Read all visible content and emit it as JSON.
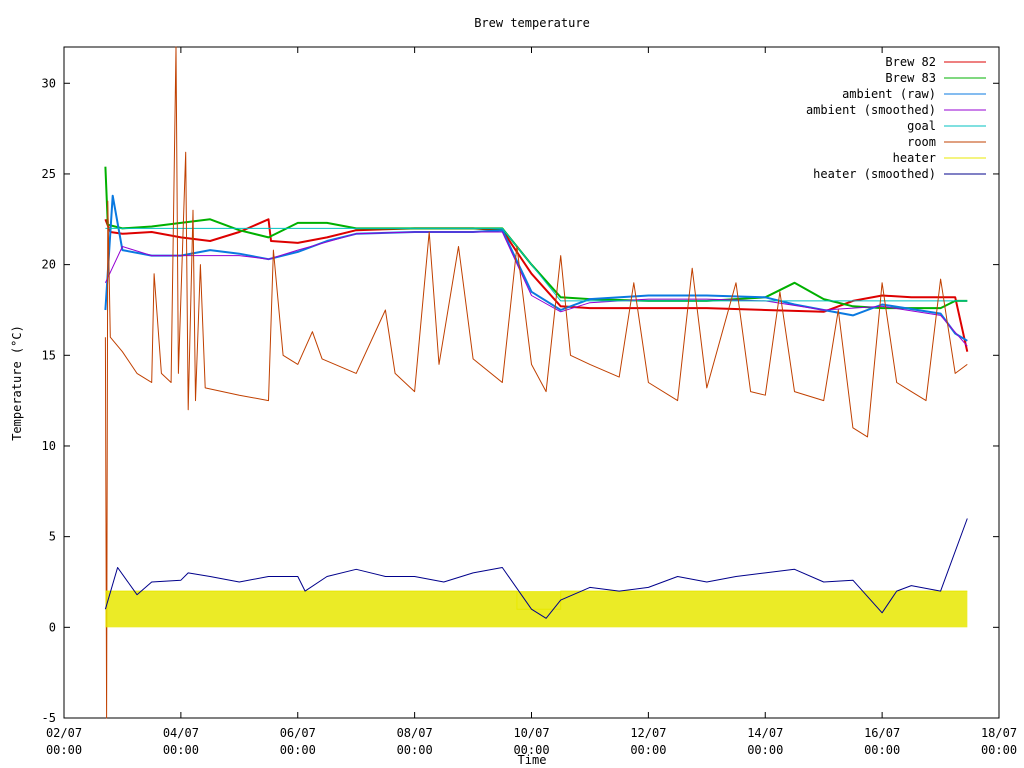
{
  "chart_data": {
    "type": "line",
    "title": "Brew temperature",
    "xlabel": "Time",
    "ylabel": "Temperature (°C)",
    "xlim": [
      "2013-07-02 00:00",
      "2013-07-18 00:00"
    ],
    "ylim": [
      -5,
      32
    ],
    "grid": false,
    "legend_position": "top-right",
    "y_ticks": [
      -5,
      0,
      5,
      10,
      15,
      20,
      25,
      30
    ],
    "x_ticks": [
      {
        "x": "2013-07-02 00:00",
        "date": "02/07",
        "time": "00:00"
      },
      {
        "x": "2013-07-04 00:00",
        "date": "04/07",
        "time": "00:00"
      },
      {
        "x": "2013-07-06 00:00",
        "date": "06/07",
        "time": "00:00"
      },
      {
        "x": "2013-07-08 00:00",
        "date": "08/07",
        "time": "00:00"
      },
      {
        "x": "2013-07-10 00:00",
        "date": "10/07",
        "time": "00:00"
      },
      {
        "x": "2013-07-12 00:00",
        "date": "12/07",
        "time": "00:00"
      },
      {
        "x": "2013-07-14 00:00",
        "date": "14/07",
        "time": "00:00"
      },
      {
        "x": "2013-07-16 00:00",
        "date": "16/07",
        "time": "00:00"
      },
      {
        "x": "2013-07-18 00:00",
        "date": "18/07",
        "time": "00:00"
      }
    ],
    "series": [
      {
        "name": "Brew 82",
        "color": "#dd0000",
        "width": 2,
        "points": [
          [
            "2013-07-02 17:00",
            22.5
          ],
          [
            "2013-07-02 19:00",
            21.8
          ],
          [
            "2013-07-03 00:00",
            21.7
          ],
          [
            "2013-07-03 12:00",
            21.8
          ],
          [
            "2013-07-04 00:00",
            21.5
          ],
          [
            "2013-07-04 12:00",
            21.3
          ],
          [
            "2013-07-05 00:00",
            21.8
          ],
          [
            "2013-07-05 12:00",
            22.5
          ],
          [
            "2013-07-05 13:00",
            21.3
          ],
          [
            "2013-07-06 00:00",
            21.2
          ],
          [
            "2013-07-06 12:00",
            21.5
          ],
          [
            "2013-07-07 00:00",
            21.9
          ],
          [
            "2013-07-08 00:00",
            22.0
          ],
          [
            "2013-07-09 00:00",
            22.0
          ],
          [
            "2013-07-09 12:00",
            21.9
          ],
          [
            "2013-07-10 00:00",
            19.5
          ],
          [
            "2013-07-10 12:00",
            17.7
          ],
          [
            "2013-07-11 00:00",
            17.6
          ],
          [
            "2013-07-12 00:00",
            17.6
          ],
          [
            "2013-07-13 00:00",
            17.6
          ],
          [
            "2013-07-14 00:00",
            17.5
          ],
          [
            "2013-07-15 00:00",
            17.4
          ],
          [
            "2013-07-15 12:00",
            18.0
          ],
          [
            "2013-07-16 00:00",
            18.3
          ],
          [
            "2013-07-16 12:00",
            18.2
          ],
          [
            "2013-07-17 06:00",
            18.2
          ],
          [
            "2013-07-17 11:00",
            15.2
          ]
        ]
      },
      {
        "name": "Brew 83",
        "color": "#00b000",
        "width": 2,
        "points": [
          [
            "2013-07-02 17:00",
            25.4
          ],
          [
            "2013-07-02 18:00",
            22.2
          ],
          [
            "2013-07-03 00:00",
            22.0
          ],
          [
            "2013-07-03 12:00",
            22.1
          ],
          [
            "2013-07-04 00:00",
            22.3
          ],
          [
            "2013-07-04 12:00",
            22.5
          ],
          [
            "2013-07-05 00:00",
            21.9
          ],
          [
            "2013-07-05 12:00",
            21.5
          ],
          [
            "2013-07-06 00:00",
            22.3
          ],
          [
            "2013-07-06 12:00",
            22.3
          ],
          [
            "2013-07-07 00:00",
            22.0
          ],
          [
            "2013-07-08 00:00",
            22.0
          ],
          [
            "2013-07-09 00:00",
            22.0
          ],
          [
            "2013-07-09 12:00",
            22.0
          ],
          [
            "2013-07-10 00:00",
            20.0
          ],
          [
            "2013-07-10 12:00",
            18.2
          ],
          [
            "2013-07-11 00:00",
            18.1
          ],
          [
            "2013-07-12 00:00",
            18.0
          ],
          [
            "2013-07-13 00:00",
            18.0
          ],
          [
            "2013-07-14 00:00",
            18.2
          ],
          [
            "2013-07-14 12:00",
            19.0
          ],
          [
            "2013-07-15 00:00",
            18.1
          ],
          [
            "2013-07-15 12:00",
            17.7
          ],
          [
            "2013-07-16 00:00",
            17.6
          ],
          [
            "2013-07-17 00:00",
            17.6
          ],
          [
            "2013-07-17 06:00",
            18.0
          ],
          [
            "2013-07-17 11:00",
            18.0
          ]
        ]
      },
      {
        "name": "ambient (raw)",
        "color": "#0a79e0",
        "width": 2,
        "points": [
          [
            "2013-07-02 17:00",
            17.5
          ],
          [
            "2013-07-02 20:00",
            23.8
          ],
          [
            "2013-07-03 00:00",
            20.8
          ],
          [
            "2013-07-03 12:00",
            20.5
          ],
          [
            "2013-07-04 00:00",
            20.5
          ],
          [
            "2013-07-04 12:00",
            20.8
          ],
          [
            "2013-07-05 00:00",
            20.6
          ],
          [
            "2013-07-05 12:00",
            20.3
          ],
          [
            "2013-07-06 00:00",
            20.7
          ],
          [
            "2013-07-06 12:00",
            21.3
          ],
          [
            "2013-07-07 00:00",
            21.7
          ],
          [
            "2013-07-08 00:00",
            21.8
          ],
          [
            "2013-07-09 00:00",
            21.8
          ],
          [
            "2013-07-09 12:00",
            21.9
          ],
          [
            "2013-07-10 00:00",
            18.5
          ],
          [
            "2013-07-10 12:00",
            17.5
          ],
          [
            "2013-07-11 00:00",
            18.1
          ],
          [
            "2013-07-12 00:00",
            18.3
          ],
          [
            "2013-07-13 00:00",
            18.3
          ],
          [
            "2013-07-14 00:00",
            18.2
          ],
          [
            "2013-07-14 12:00",
            17.8
          ],
          [
            "2013-07-15 00:00",
            17.5
          ],
          [
            "2013-07-15 12:00",
            17.2
          ],
          [
            "2013-07-16 00:00",
            17.8
          ],
          [
            "2013-07-17 00:00",
            17.3
          ],
          [
            "2013-07-17 06:00",
            16.2
          ],
          [
            "2013-07-17 11:00",
            15.8
          ]
        ]
      },
      {
        "name": "ambient (smoothed)",
        "color": "#9400d3",
        "width": 1,
        "points": [
          [
            "2013-07-02 17:00",
            19.0
          ],
          [
            "2013-07-03 00:00",
            21.0
          ],
          [
            "2013-07-03 12:00",
            20.5
          ],
          [
            "2013-07-04 00:00",
            20.5
          ],
          [
            "2013-07-05 00:00",
            20.5
          ],
          [
            "2013-07-05 12:00",
            20.3
          ],
          [
            "2013-07-06 00:00",
            20.8
          ],
          [
            "2013-07-07 00:00",
            21.7
          ],
          [
            "2013-07-08 00:00",
            21.8
          ],
          [
            "2013-07-09 00:00",
            21.8
          ],
          [
            "2013-07-09 12:00",
            21.8
          ],
          [
            "2013-07-10 00:00",
            18.3
          ],
          [
            "2013-07-10 12:00",
            17.4
          ],
          [
            "2013-07-11 00:00",
            17.9
          ],
          [
            "2013-07-12 00:00",
            18.1
          ],
          [
            "2013-07-13 00:00",
            18.1
          ],
          [
            "2013-07-14 00:00",
            18.0
          ],
          [
            "2013-07-15 00:00",
            17.5
          ],
          [
            "2013-07-16 00:00",
            17.7
          ],
          [
            "2013-07-17 00:00",
            17.2
          ],
          [
            "2013-07-17 11:00",
            15.5
          ]
        ]
      },
      {
        "name": "goal",
        "color": "#00c0c0",
        "width": 1,
        "points": [
          [
            "2013-07-02 17:00",
            22.0
          ],
          [
            "2013-07-09 12:00",
            22.0
          ],
          [
            "2013-07-10 12:00",
            18.0
          ],
          [
            "2013-07-17 11:00",
            18.0
          ]
        ]
      },
      {
        "name": "room",
        "color": "#c04000",
        "width": 1,
        "points": [
          [
            "2013-07-02 17:00",
            16.0
          ],
          [
            "2013-07-02 17:30",
            -5.0
          ],
          [
            "2013-07-02 18:00",
            23.5
          ],
          [
            "2013-07-02 19:00",
            16.0
          ],
          [
            "2013-07-03 00:00",
            15.2
          ],
          [
            "2013-07-03 06:00",
            14.0
          ],
          [
            "2013-07-03 12:00",
            13.5
          ],
          [
            "2013-07-03 13:00",
            19.5
          ],
          [
            "2013-07-03 16:00",
            14.0
          ],
          [
            "2013-07-03 20:00",
            13.5
          ],
          [
            "2013-07-03 22:00",
            32.0
          ],
          [
            "2013-07-03 23:00",
            14.0
          ],
          [
            "2013-07-04 02:00",
            26.2
          ],
          [
            "2013-07-04 03:00",
            12.0
          ],
          [
            "2013-07-04 05:00",
            23.0
          ],
          [
            "2013-07-04 06:00",
            12.5
          ],
          [
            "2013-07-04 08:00",
            20.0
          ],
          [
            "2013-07-04 10:00",
            13.2
          ],
          [
            "2013-07-05 00:00",
            12.8
          ],
          [
            "2013-07-05 12:00",
            12.5
          ],
          [
            "2013-07-05 14:00",
            20.8
          ],
          [
            "2013-07-05 18:00",
            15.0
          ],
          [
            "2013-07-06 00:00",
            14.5
          ],
          [
            "2013-07-06 06:00",
            16.3
          ],
          [
            "2013-07-06 10:00",
            14.8
          ],
          [
            "2013-07-07 00:00",
            14.0
          ],
          [
            "2013-07-07 12:00",
            17.5
          ],
          [
            "2013-07-07 16:00",
            14.0
          ],
          [
            "2013-07-08 00:00",
            13.0
          ],
          [
            "2013-07-08 06:00",
            21.8
          ],
          [
            "2013-07-08 10:00",
            14.5
          ],
          [
            "2013-07-08 18:00",
            21.0
          ],
          [
            "2013-07-09 00:00",
            14.8
          ],
          [
            "2013-07-09 12:00",
            13.5
          ],
          [
            "2013-07-09 18:00",
            21.0
          ],
          [
            "2013-07-10 00:00",
            14.5
          ],
          [
            "2013-07-10 06:00",
            13.0
          ],
          [
            "2013-07-10 12:00",
            20.5
          ],
          [
            "2013-07-10 16:00",
            15.0
          ],
          [
            "2013-07-11 00:00",
            14.5
          ],
          [
            "2013-07-11 12:00",
            13.8
          ],
          [
            "2013-07-11 18:00",
            19.0
          ],
          [
            "2013-07-12 00:00",
            13.5
          ],
          [
            "2013-07-12 12:00",
            12.5
          ],
          [
            "2013-07-12 18:00",
            19.8
          ],
          [
            "2013-07-13 00:00",
            13.2
          ],
          [
            "2013-07-13 12:00",
            19.0
          ],
          [
            "2013-07-13 18:00",
            13.0
          ],
          [
            "2013-07-14 00:00",
            12.8
          ],
          [
            "2013-07-14 06:00",
            18.5
          ],
          [
            "2013-07-14 12:00",
            13.0
          ],
          [
            "2013-07-15 00:00",
            12.5
          ],
          [
            "2013-07-15 06:00",
            17.5
          ],
          [
            "2013-07-15 12:00",
            11.0
          ],
          [
            "2013-07-15 18:00",
            10.5
          ],
          [
            "2013-07-16 00:00",
            19.0
          ],
          [
            "2013-07-16 06:00",
            13.5
          ],
          [
            "2013-07-16 12:00",
            13.0
          ],
          [
            "2013-07-16 18:00",
            12.5
          ],
          [
            "2013-07-17 00:00",
            19.2
          ],
          [
            "2013-07-17 06:00",
            14.0
          ],
          [
            "2013-07-17 11:00",
            14.5
          ]
        ]
      },
      {
        "name": "heater",
        "color": "#e8e800",
        "width": 1,
        "points": [
          [
            "2013-07-02 17:00",
            2.0
          ],
          [
            "2013-07-09 18:00",
            2.0
          ],
          [
            "2013-07-09 18:00",
            1.0
          ],
          [
            "2013-07-10 12:00",
            1.0
          ],
          [
            "2013-07-10 12:00",
            2.0
          ],
          [
            "2013-07-17 11:00",
            2.0
          ]
        ],
        "band": [
          0,
          2
        ]
      },
      {
        "name": "heater (smoothed)",
        "color": "#00008b",
        "width": 1,
        "points": [
          [
            "2013-07-02 17:00",
            1.0
          ],
          [
            "2013-07-02 22:00",
            3.3
          ],
          [
            "2013-07-03 06:00",
            1.8
          ],
          [
            "2013-07-03 12:00",
            2.5
          ],
          [
            "2013-07-04 00:00",
            2.6
          ],
          [
            "2013-07-04 03:00",
            3.0
          ],
          [
            "2013-07-04 12:00",
            2.8
          ],
          [
            "2013-07-05 00:00",
            2.5
          ],
          [
            "2013-07-05 12:00",
            2.8
          ],
          [
            "2013-07-06 00:00",
            2.8
          ],
          [
            "2013-07-06 03:00",
            2.0
          ],
          [
            "2013-07-06 12:00",
            2.8
          ],
          [
            "2013-07-07 00:00",
            3.2
          ],
          [
            "2013-07-07 12:00",
            2.8
          ],
          [
            "2013-07-08 00:00",
            2.8
          ],
          [
            "2013-07-08 12:00",
            2.5
          ],
          [
            "2013-07-09 00:00",
            3.0
          ],
          [
            "2013-07-09 12:00",
            3.3
          ],
          [
            "2013-07-10 00:00",
            1.0
          ],
          [
            "2013-07-10 06:00",
            0.5
          ],
          [
            "2013-07-10 12:00",
            1.5
          ],
          [
            "2013-07-11 00:00",
            2.2
          ],
          [
            "2013-07-11 12:00",
            2.0
          ],
          [
            "2013-07-12 00:00",
            2.2
          ],
          [
            "2013-07-12 12:00",
            2.8
          ],
          [
            "2013-07-13 00:00",
            2.5
          ],
          [
            "2013-07-13 12:00",
            2.8
          ],
          [
            "2013-07-14 00:00",
            3.0
          ],
          [
            "2013-07-14 12:00",
            3.2
          ],
          [
            "2013-07-15 00:00",
            2.5
          ],
          [
            "2013-07-15 12:00",
            2.6
          ],
          [
            "2013-07-16 00:00",
            0.8
          ],
          [
            "2013-07-16 06:00",
            2.0
          ],
          [
            "2013-07-16 12:00",
            2.3
          ],
          [
            "2013-07-17 00:00",
            2.0
          ],
          [
            "2013-07-17 11:00",
            6.0
          ]
        ]
      }
    ]
  }
}
